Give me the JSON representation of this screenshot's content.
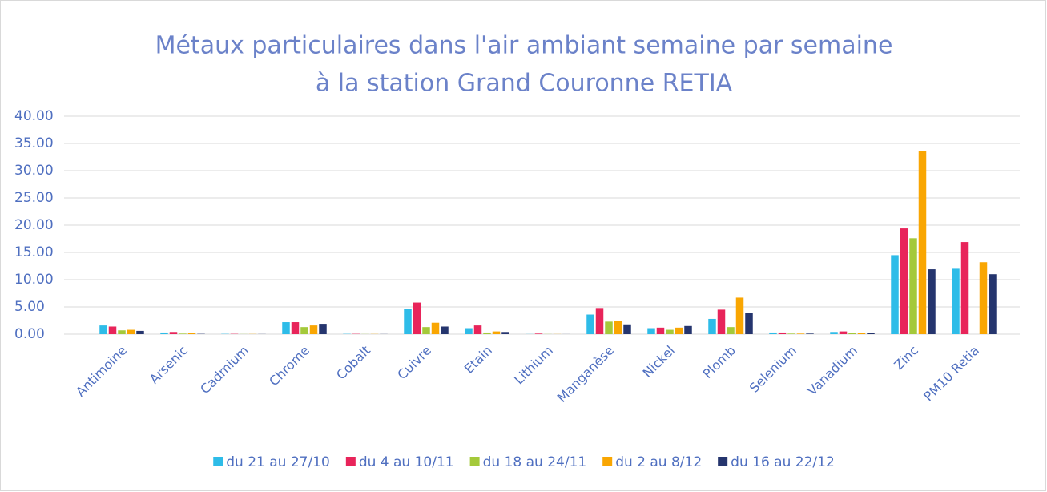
{
  "chart_data": {
    "type": "bar",
    "title": [
      "Métaux particulaires dans l'air ambiant semaine par semaine",
      "à la station Grand Couronne RETIA"
    ],
    "categories": [
      "Antimoine",
      "Arsenic",
      "Cadmium",
      "Chrome",
      "Cobalt",
      "Cuivre",
      "Etain",
      "Lithium",
      "Manganèse",
      "Nickel",
      "Plomb",
      "Selenium",
      "Vanadium",
      "Zinc",
      "PM10 Retia"
    ],
    "series": [
      {
        "name": "du 21 au 27/10",
        "color": "#2ebce8",
        "values": [
          1.6,
          0.3,
          0.05,
          2.2,
          0.05,
          4.7,
          1.1,
          0.02,
          3.6,
          1.1,
          2.8,
          0.3,
          0.4,
          14.5,
          12.0
        ]
      },
      {
        "name": "du 4 au 10/11",
        "color": "#e8245a",
        "values": [
          1.4,
          0.4,
          0.05,
          2.2,
          0.05,
          5.8,
          1.6,
          0.1,
          4.8,
          1.2,
          4.5,
          0.3,
          0.5,
          19.4,
          16.9
        ]
      },
      {
        "name": "du 18 au 24/11",
        "color": "#a4c93a",
        "values": [
          0.7,
          0.1,
          0.02,
          1.3,
          0.02,
          1.3,
          0.3,
          0.02,
          2.3,
          0.8,
          1.3,
          0.1,
          0.2,
          17.6,
          null
        ]
      },
      {
        "name": "du 2 au 8/12",
        "color": "#f9a602",
        "values": [
          0.8,
          0.15,
          0.03,
          1.6,
          0.03,
          2.1,
          0.5,
          0.02,
          2.5,
          1.2,
          6.7,
          0.1,
          0.2,
          33.6,
          13.2
        ]
      },
      {
        "name": "du 16 au 22/12",
        "color": "#25356e",
        "values": [
          0.6,
          0.05,
          0.02,
          1.9,
          0.02,
          1.4,
          0.4,
          0.01,
          1.8,
          1.5,
          3.9,
          0.1,
          0.2,
          11.9,
          11.0
        ]
      }
    ],
    "ylim": [
      0,
      40
    ],
    "yticks": [
      {
        "value": 0,
        "label": "0.00"
      },
      {
        "value": 5,
        "label": "5.00"
      },
      {
        "value": 10,
        "label": "10.00"
      },
      {
        "value": 15,
        "label": "15.00"
      },
      {
        "value": 20,
        "label": "20.00"
      },
      {
        "value": 25,
        "label": "25.00"
      },
      {
        "value": 30,
        "label": "30.00"
      },
      {
        "value": 35,
        "label": "35.00"
      },
      {
        "value": 40,
        "label": "40.00"
      }
    ],
    "grid": true,
    "legend": "bottom"
  }
}
